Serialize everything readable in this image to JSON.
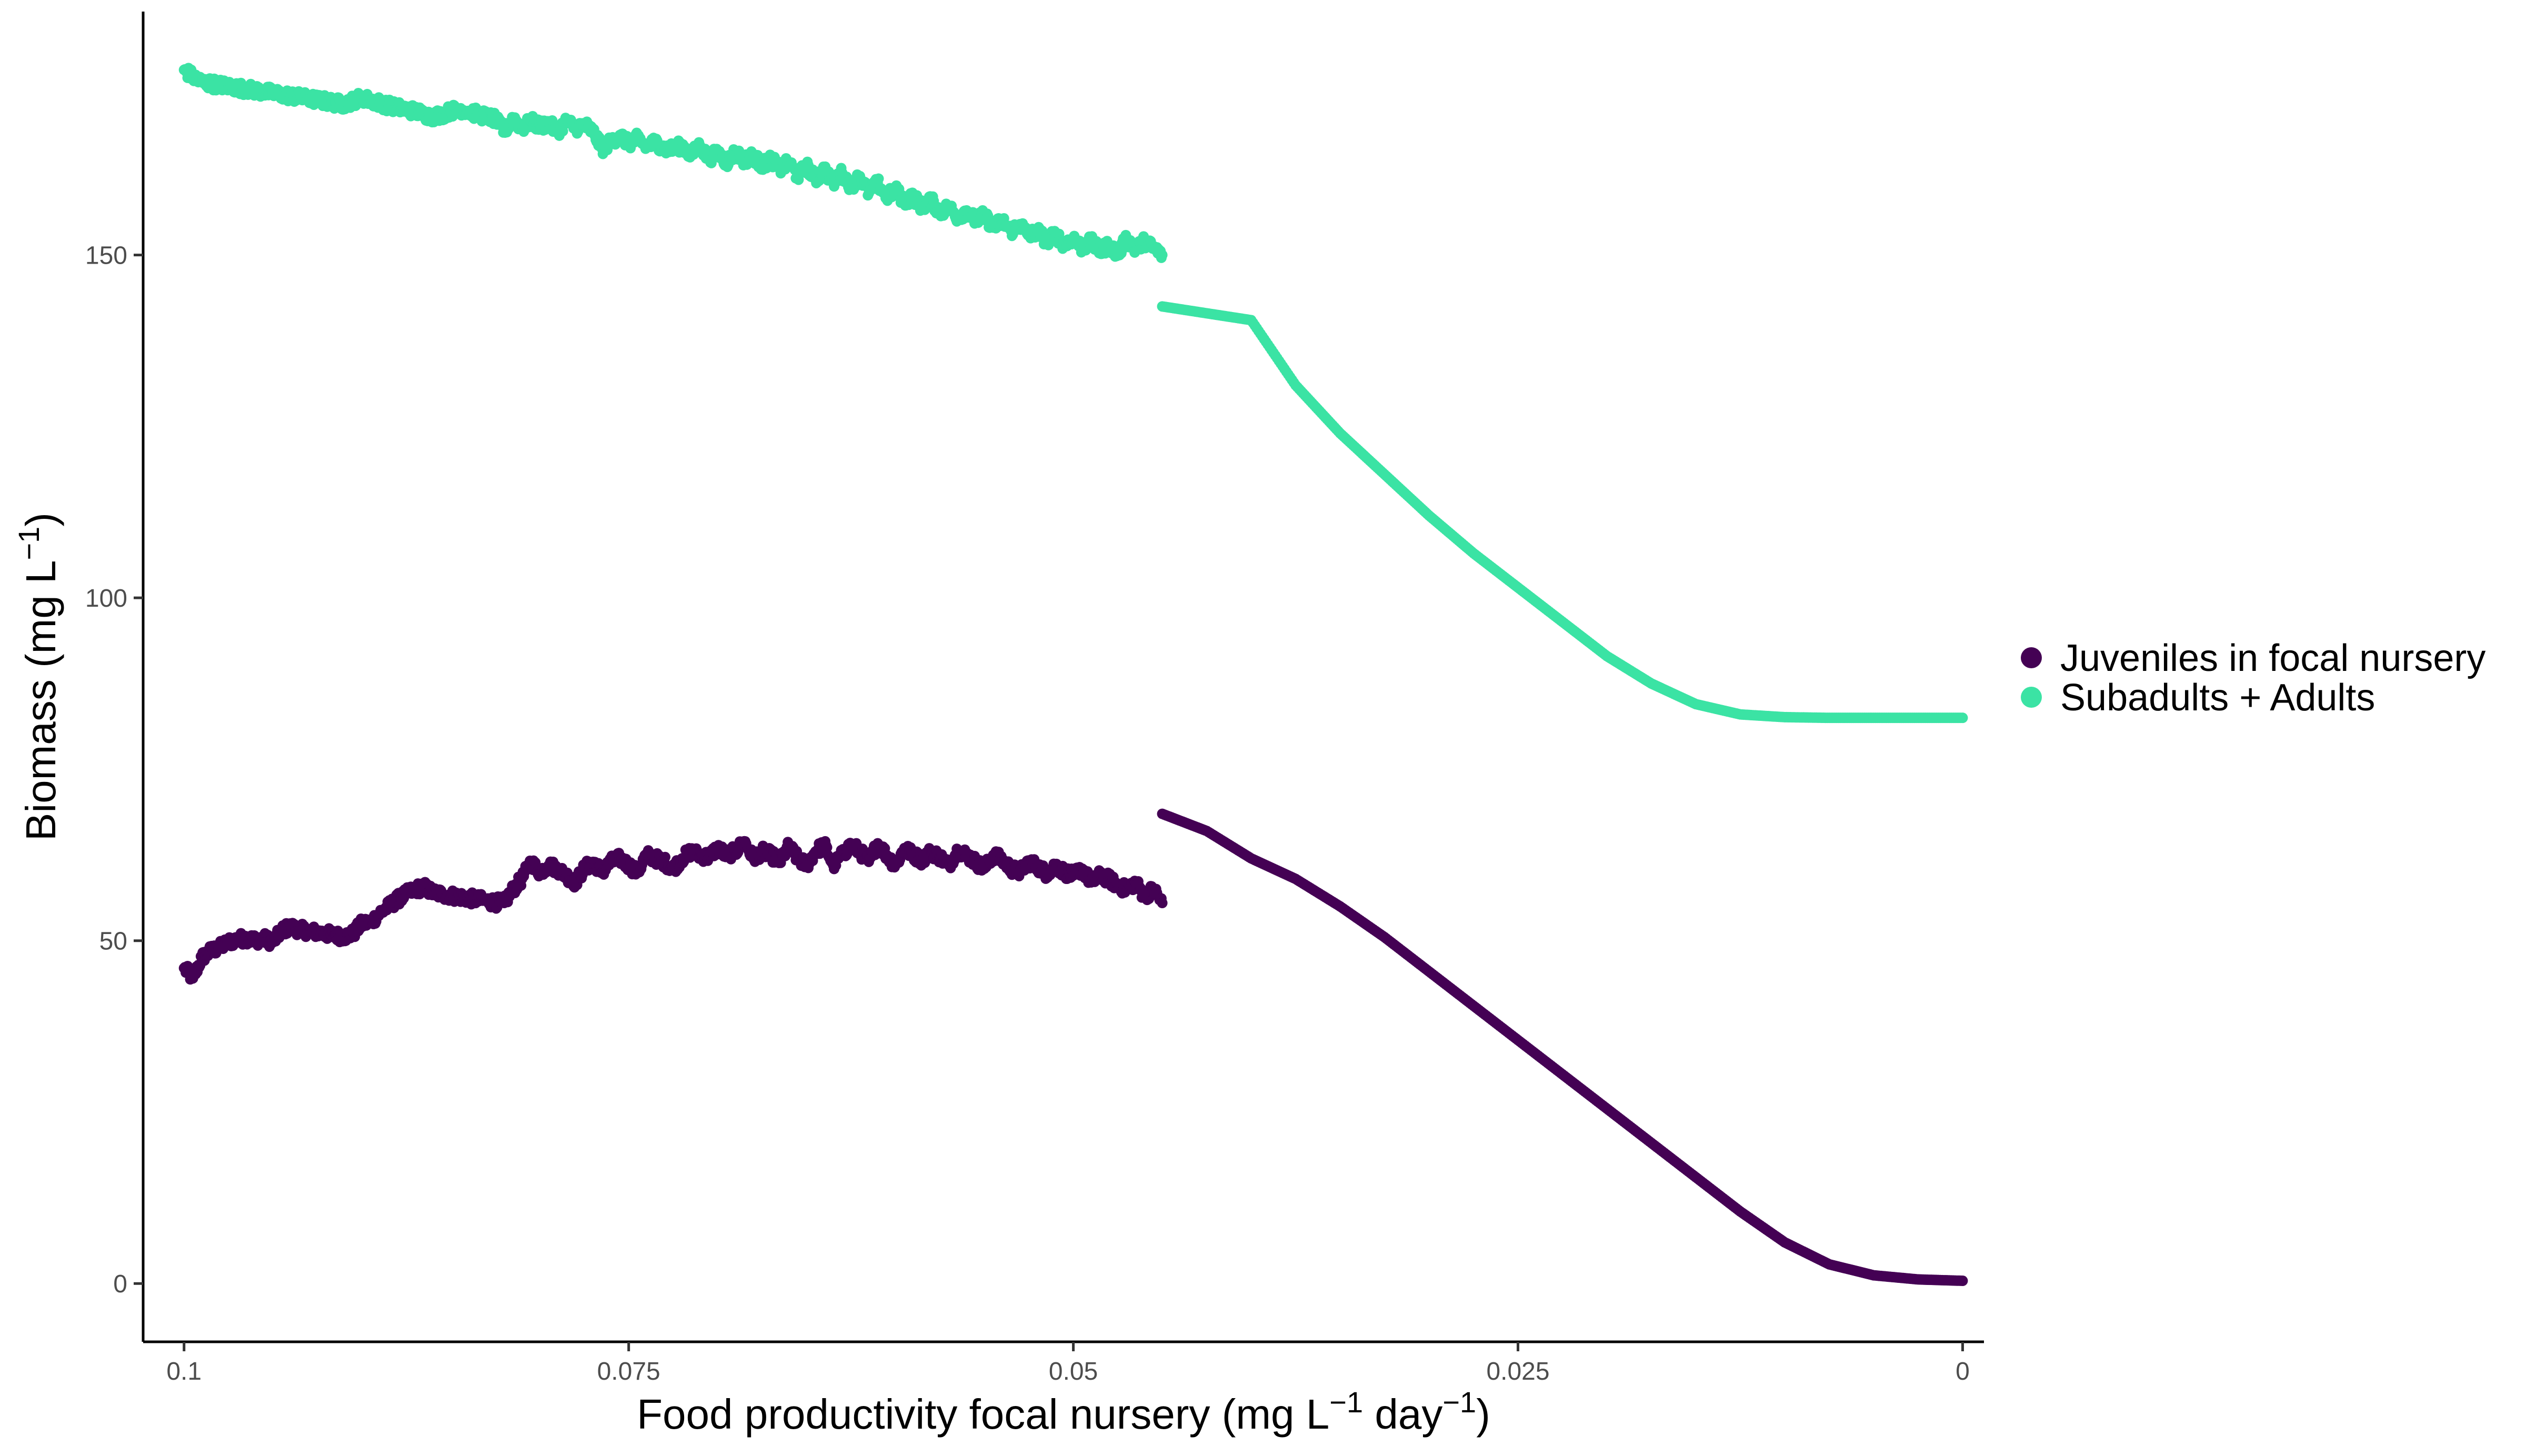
{
  "chart_data": {
    "type": "scatter",
    "title": "",
    "xlabel": {
      "parts": [
        "Food productivity focal nursery (mg L",
        "−1",
        " day",
        "−1",
        ")"
      ]
    },
    "ylabel": {
      "parts": [
        "Biomass (mg L",
        "−1",
        ")"
      ]
    },
    "x_reversed": true,
    "xlim": [
      0.1023,
      -0.0012
    ],
    "ylim": [
      -8.5,
      185.5
    ],
    "xticks": [
      {
        "value": 0.1,
        "label": "0.1"
      },
      {
        "value": 0.075,
        "label": "0.075"
      },
      {
        "value": 0.05,
        "label": "0.05"
      },
      {
        "value": 0.025,
        "label": "0.025"
      },
      {
        "value": 0,
        "label": "0"
      }
    ],
    "yticks": [
      {
        "value": 0,
        "label": "0"
      },
      {
        "value": 50,
        "label": "50"
      },
      {
        "value": 100,
        "label": "100"
      },
      {
        "value": 150,
        "label": "150"
      }
    ],
    "grid": false,
    "legend_position": "right",
    "series": [
      {
        "name": "Juveniles in focal nursery",
        "color": "#440154",
        "shape": "circle",
        "noisy_range": [
          0.1,
          0.045
        ],
        "smooth_range": [
          0.045,
          0.0
        ],
        "points": [
          [
            0.1,
            46
          ],
          [
            0.0995,
            44.5
          ],
          [
            0.099,
            47.5
          ],
          [
            0.0985,
            48.5
          ],
          [
            0.098,
            49
          ],
          [
            0.0975,
            49.8
          ],
          [
            0.097,
            50.2
          ],
          [
            0.0965,
            50.4
          ],
          [
            0.096,
            50.1
          ],
          [
            0.0955,
            50.3
          ],
          [
            0.095,
            49.8
          ],
          [
            0.0945,
            51.5
          ],
          [
            0.094,
            52
          ],
          [
            0.0935,
            51.6
          ],
          [
            0.093,
            51.4
          ],
          [
            0.0925,
            51.2
          ],
          [
            0.092,
            51
          ],
          [
            0.0915,
            50.8
          ],
          [
            0.091,
            50.6
          ],
          [
            0.0905,
            51
          ],
          [
            0.09,
            52.5
          ],
          [
            0.0895,
            52.7
          ],
          [
            0.089,
            54
          ],
          [
            0.0885,
            55
          ],
          [
            0.088,
            56
          ],
          [
            0.0875,
            56.8
          ],
          [
            0.087,
            57.5
          ],
          [
            0.0865,
            57.8
          ],
          [
            0.086,
            57
          ],
          [
            0.0855,
            56.8
          ],
          [
            0.085,
            56.6
          ],
          [
            0.0845,
            56.4
          ],
          [
            0.084,
            56.2
          ],
          [
            0.0835,
            56
          ],
          [
            0.083,
            55.8
          ],
          [
            0.0825,
            55.6
          ],
          [
            0.082,
            55.5
          ],
          [
            0.0815,
            57.5
          ],
          [
            0.081,
            59
          ],
          [
            0.0805,
            61.5
          ],
          [
            0.08,
            60
          ],
          [
            0.0795,
            61
          ],
          [
            0.079,
            60.5
          ],
          [
            0.0785,
            59.5
          ],
          [
            0.078,
            58.5
          ],
          [
            0.0775,
            60.5
          ],
          [
            0.077,
            61.5
          ],
          [
            0.0765,
            60
          ],
          [
            0.076,
            61.5
          ],
          [
            0.0755,
            62
          ],
          [
            0.075,
            61
          ],
          [
            0.0745,
            60
          ],
          [
            0.074,
            62.5
          ],
          [
            0.0735,
            62
          ],
          [
            0.073,
            61.5
          ],
          [
            0.0725,
            60.5
          ],
          [
            0.072,
            62
          ],
          [
            0.0715,
            63
          ],
          [
            0.071,
            62.5
          ],
          [
            0.0705,
            62.2
          ],
          [
            0.07,
            63.5
          ],
          [
            0.0695,
            62.5
          ],
          [
            0.069,
            63
          ],
          [
            0.0685,
            64.5
          ],
          [
            0.068,
            62
          ],
          [
            0.0675,
            63
          ],
          [
            0.067,
            62.5
          ],
          [
            0.0665,
            61.5
          ],
          [
            0.066,
            63.8
          ],
          [
            0.0655,
            62
          ],
          [
            0.065,
            61
          ],
          [
            0.0645,
            63
          ],
          [
            0.064,
            64
          ],
          [
            0.0635,
            61
          ],
          [
            0.063,
            62.5
          ],
          [
            0.0625,
            64
          ],
          [
            0.062,
            63
          ],
          [
            0.0615,
            61.5
          ],
          [
            0.061,
            64.2
          ],
          [
            0.0605,
            62.5
          ],
          [
            0.06,
            61
          ],
          [
            0.0595,
            63.5
          ],
          [
            0.059,
            62.5
          ],
          [
            0.0585,
            61.8
          ],
          [
            0.058,
            63
          ],
          [
            0.0575,
            62.2
          ],
          [
            0.057,
            61
          ],
          [
            0.0565,
            63.2
          ],
          [
            0.056,
            62.5
          ],
          [
            0.0555,
            61.5
          ],
          [
            0.055,
            60.5
          ],
          [
            0.0545,
            62.5
          ],
          [
            0.054,
            61.8
          ],
          [
            0.0535,
            60.5
          ],
          [
            0.053,
            60
          ],
          [
            0.0525,
            61.5
          ],
          [
            0.052,
            60.8
          ],
          [
            0.0515,
            59.8
          ],
          [
            0.051,
            61
          ],
          [
            0.0505,
            60
          ],
          [
            0.05,
            59.5
          ],
          [
            0.0495,
            60.5
          ],
          [
            0.049,
            58.5
          ],
          [
            0.0485,
            59.5
          ],
          [
            0.048,
            59
          ],
          [
            0.0475,
            58
          ],
          [
            0.047,
            57.5
          ],
          [
            0.0465,
            58.5
          ],
          [
            0.046,
            56.5
          ],
          [
            0.0455,
            57.5
          ],
          [
            0.045,
            55.5
          ],
          [
            0.045,
            68.5
          ],
          [
            0.0425,
            66
          ],
          [
            0.04,
            62
          ],
          [
            0.0375,
            59
          ],
          [
            0.035,
            55
          ],
          [
            0.0325,
            50.5
          ],
          [
            0.03,
            45.5
          ],
          [
            0.0275,
            40.5
          ],
          [
            0.025,
            35.5
          ],
          [
            0.0225,
            30.5
          ],
          [
            0.02,
            25.5
          ],
          [
            0.0175,
            20.5
          ],
          [
            0.015,
            15.5
          ],
          [
            0.0125,
            10.5
          ],
          [
            0.01,
            6
          ],
          [
            0.0075,
            2.8
          ],
          [
            0.005,
            1.2
          ],
          [
            0.0025,
            0.6
          ],
          [
            0.0,
            0.4
          ]
        ]
      },
      {
        "name": "Subadults + Adults",
        "color": "#3BE3A4",
        "shape": "circle",
        "noisy_range": [
          0.1,
          0.045
        ],
        "smooth_range": [
          0.045,
          0.0
        ],
        "points": [
          [
            0.1,
            177
          ],
          [
            0.0995,
            176
          ],
          [
            0.099,
            175.2
          ],
          [
            0.0985,
            175
          ],
          [
            0.098,
            174.8
          ],
          [
            0.0975,
            174.6
          ],
          [
            0.097,
            174.4
          ],
          [
            0.0965,
            174.2
          ],
          [
            0.096,
            174
          ],
          [
            0.0955,
            173.8
          ],
          [
            0.095,
            173.6
          ],
          [
            0.0945,
            173.4
          ],
          [
            0.094,
            173.2
          ],
          [
            0.0935,
            173
          ],
          [
            0.093,
            172.8
          ],
          [
            0.0925,
            172.6
          ],
          [
            0.092,
            172.4
          ],
          [
            0.0915,
            172.2
          ],
          [
            0.091,
            172
          ],
          [
            0.0905,
            172.5
          ],
          [
            0.09,
            173
          ],
          [
            0.0895,
            172.5
          ],
          [
            0.089,
            172.2
          ],
          [
            0.0885,
            171.8
          ],
          [
            0.088,
            171.5
          ],
          [
            0.0875,
            171.2
          ],
          [
            0.087,
            171
          ],
          [
            0.0865,
            170.5
          ],
          [
            0.086,
            170.2
          ],
          [
            0.0855,
            170.5
          ],
          [
            0.085,
            171
          ],
          [
            0.0845,
            171.3
          ],
          [
            0.084,
            171
          ],
          [
            0.0835,
            170.5
          ],
          [
            0.083,
            170.2
          ],
          [
            0.0825,
            169.8
          ],
          [
            0.082,
            168
          ],
          [
            0.0815,
            170
          ],
          [
            0.081,
            168.5
          ],
          [
            0.0805,
            169.5
          ],
          [
            0.08,
            168.8
          ],
          [
            0.0795,
            169.2
          ],
          [
            0.079,
            168
          ],
          [
            0.0785,
            169.5
          ],
          [
            0.078,
            168.5
          ],
          [
            0.0775,
            169
          ],
          [
            0.077,
            168
          ],
          [
            0.0765,
            165.5
          ],
          [
            0.076,
            166.5
          ],
          [
            0.0755,
            167.5
          ],
          [
            0.075,
            166.2
          ],
          [
            0.0745,
            167
          ],
          [
            0.074,
            165.8
          ],
          [
            0.0735,
            166.5
          ],
          [
            0.073,
            165.5
          ],
          [
            0.0725,
            165.5
          ],
          [
            0.072,
            166
          ],
          [
            0.0715,
            164.5
          ],
          [
            0.071,
            166
          ],
          [
            0.0705,
            164
          ],
          [
            0.07,
            165
          ],
          [
            0.0695,
            163.5
          ],
          [
            0.069,
            165
          ],
          [
            0.0685,
            163.8
          ],
          [
            0.068,
            164.5
          ],
          [
            0.0675,
            163
          ],
          [
            0.067,
            164
          ],
          [
            0.0665,
            162.5
          ],
          [
            0.066,
            163.5
          ],
          [
            0.0655,
            161.5
          ],
          [
            0.065,
            163
          ],
          [
            0.0645,
            161
          ],
          [
            0.064,
            162.5
          ],
          [
            0.0635,
            160.5
          ],
          [
            0.063,
            162
          ],
          [
            0.0625,
            160
          ],
          [
            0.062,
            161.5
          ],
          [
            0.0615,
            159
          ],
          [
            0.061,
            160.5
          ],
          [
            0.0605,
            158.5
          ],
          [
            0.06,
            159.5
          ],
          [
            0.0595,
            157.8
          ],
          [
            0.059,
            158.5
          ],
          [
            0.0585,
            157
          ],
          [
            0.058,
            158
          ],
          [
            0.0575,
            156.2
          ],
          [
            0.057,
            157
          ],
          [
            0.0565,
            155.5
          ],
          [
            0.056,
            156.5
          ],
          [
            0.0555,
            155
          ],
          [
            0.055,
            155.8
          ],
          [
            0.0545,
            154
          ],
          [
            0.054,
            155
          ],
          [
            0.0535,
            153.5
          ],
          [
            0.053,
            154.5
          ],
          [
            0.0525,
            152.8
          ],
          [
            0.052,
            153.5
          ],
          [
            0.0515,
            152
          ],
          [
            0.051,
            153
          ],
          [
            0.0505,
            151.5
          ],
          [
            0.05,
            152.5
          ],
          [
            0.0495,
            151
          ],
          [
            0.049,
            152
          ],
          [
            0.0485,
            150.5
          ],
          [
            0.048,
            151.5
          ],
          [
            0.0475,
            150
          ],
          [
            0.047,
            152.5
          ],
          [
            0.0465,
            150.8
          ],
          [
            0.046,
            152
          ],
          [
            0.0455,
            151
          ],
          [
            0.045,
            150
          ],
          [
            0.045,
            142.5
          ],
          [
            0.0425,
            141.5
          ],
          [
            0.04,
            140.5
          ],
          [
            0.0375,
            131
          ],
          [
            0.035,
            124
          ],
          [
            0.0325,
            118
          ],
          [
            0.03,
            112
          ],
          [
            0.0275,
            106.5
          ],
          [
            0.025,
            101.5
          ],
          [
            0.0225,
            96.5
          ],
          [
            0.02,
            91.5
          ],
          [
            0.0175,
            87.5
          ],
          [
            0.015,
            84.5
          ],
          [
            0.0125,
            83
          ],
          [
            0.01,
            82.6
          ],
          [
            0.0075,
            82.5
          ],
          [
            0.005,
            82.5
          ],
          [
            0.0025,
            82.5
          ],
          [
            0.0,
            82.5
          ]
        ]
      }
    ]
  }
}
